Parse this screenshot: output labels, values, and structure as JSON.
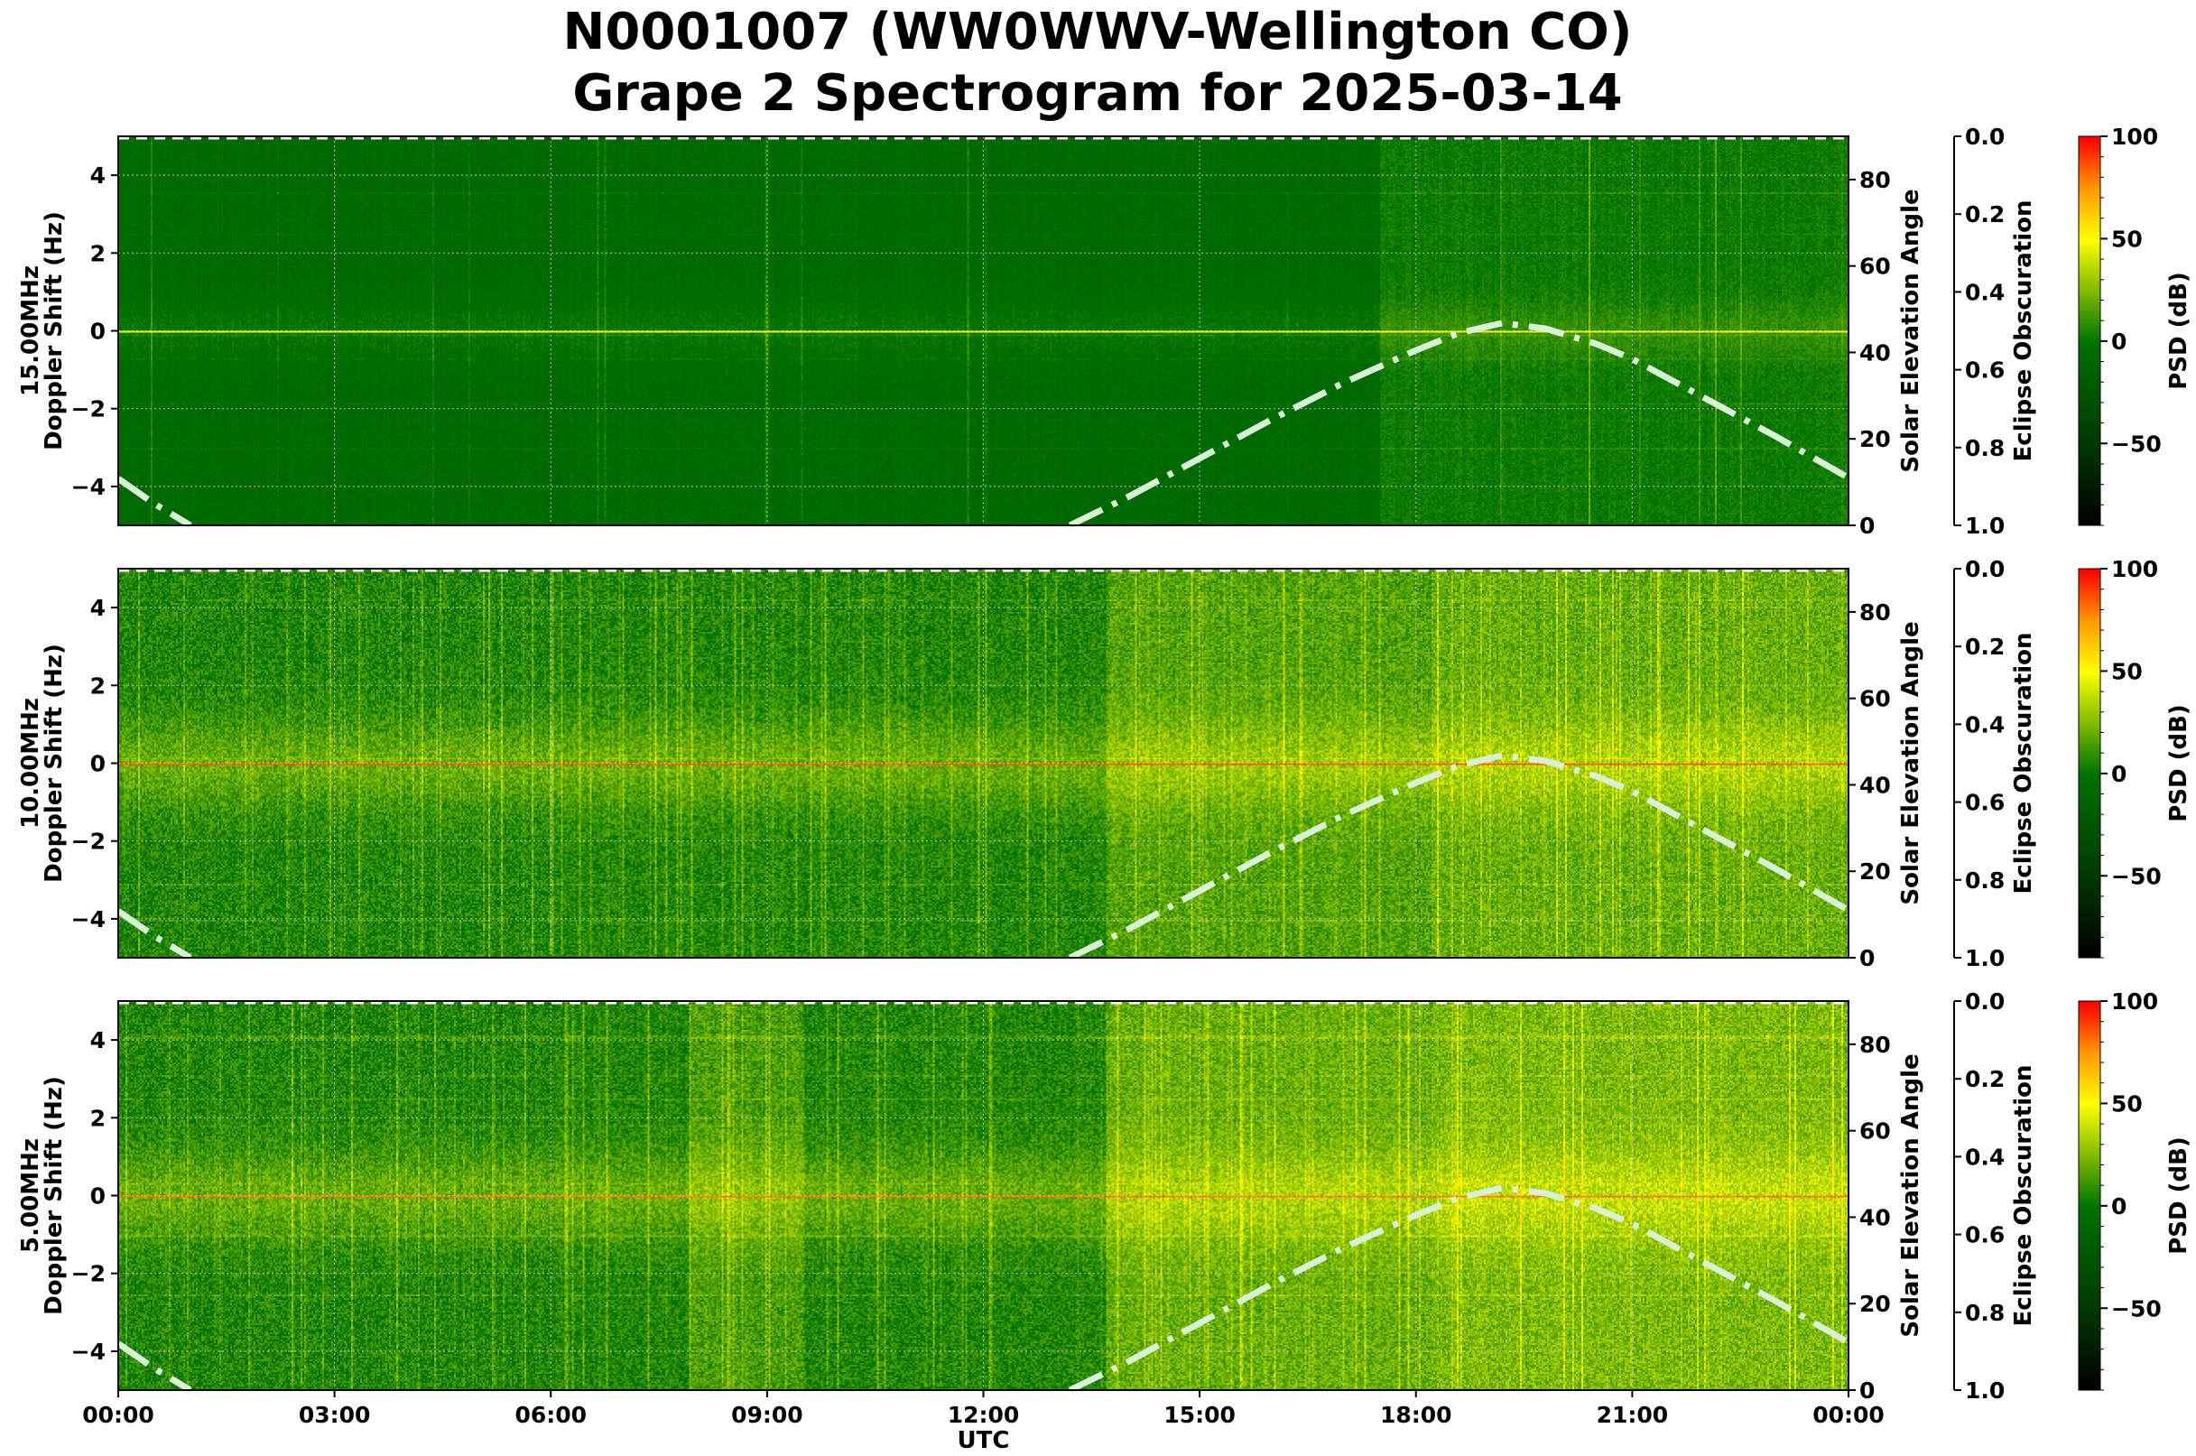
{
  "chart_data": {
    "type": "heatmap",
    "title": "N0001007 (WW0WWV-Wellington CO)",
    "subtitle": "Grape 2 Spectrogram for 2025-03-14",
    "xlabel": "UTC",
    "x_ticks": [
      "00:00",
      "03:00",
      "06:00",
      "09:00",
      "12:00",
      "15:00",
      "18:00",
      "21:00",
      "00:00"
    ],
    "xlim_hours": [
      0,
      24
    ],
    "ylabel": "Doppler Shift (Hz)",
    "ylim": [
      -5,
      5
    ],
    "y_ticks": [
      4,
      2,
      0,
      -2,
      -4
    ],
    "y_tick_labels": [
      "4",
      "2",
      "0",
      "−2",
      "−4"
    ],
    "grid": true,
    "panels": [
      {
        "frequency_label": "15.00MHz"
      },
      {
        "frequency_label": "10.00MHz"
      },
      {
        "frequency_label": "5.00MHz"
      }
    ],
    "solar_elevation": {
      "axis_label": "Solar Elevation Angle",
      "ylim": [
        0,
        90
      ],
      "ticks": [
        "0",
        "20",
        "40",
        "60",
        "80"
      ],
      "color": "#d8efd8",
      "line_style": "dash-dot",
      "hours": [
        0,
        0.5,
        1.0,
        13.2,
        14,
        15,
        16,
        17,
        18,
        18.6,
        19.2,
        19.8,
        20.5,
        21,
        22,
        23,
        24
      ],
      "degrees": [
        10.8,
        5,
        0,
        0,
        6.5,
        15.5,
        24.5,
        33,
        40.5,
        44.5,
        46.8,
        45.5,
        42,
        38.5,
        29.5,
        20.5,
        11
      ]
    },
    "eclipse_obscuration": {
      "axis_label": "Eclipse Obscuration",
      "ylim": [
        1.0,
        0.0
      ],
      "ticks": [
        "0.0",
        "0.2",
        "0.4",
        "0.6",
        "0.8",
        "1.0"
      ],
      "value": 0.0,
      "color": "#ffffff"
    },
    "colorbar": {
      "label": "PSD (dB)",
      "range": [
        -90,
        100
      ],
      "ticks": [
        100,
        50,
        0,
        -50
      ],
      "tick_labels": [
        "100",
        "50",
        "0",
        "−50"
      ],
      "colors": {
        "-90": "#000000",
        "-50": "#033803",
        "0": "#007300",
        "25": "#80bb00",
        "50": "#ffff00",
        "75": "#ff9900",
        "100": "#ff0000"
      }
    }
  }
}
